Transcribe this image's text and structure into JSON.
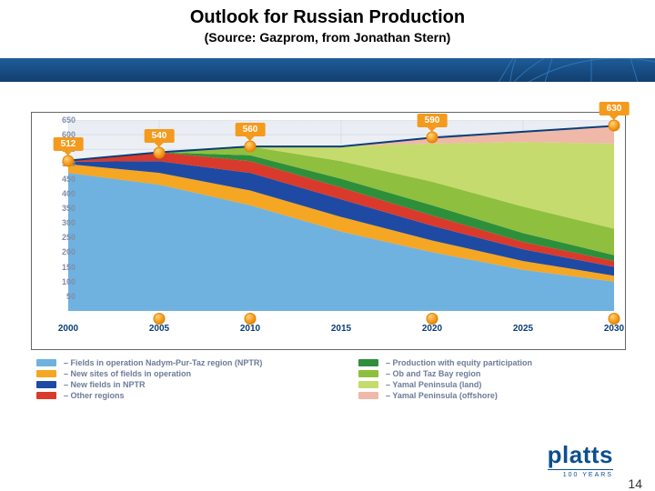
{
  "title": "Outlook for Russian Production",
  "subtitle": "(Source: Gazprom, from Jonathan Stern)",
  "page_number": "14",
  "logo": {
    "brand": "platts",
    "tagline": "100 YEARS"
  },
  "band": {
    "bg_top": "#1e5c99",
    "bg_bottom": "#123f6f",
    "grid_color": "#2f78b8"
  },
  "chart": {
    "type": "area",
    "background_color": "#f0f3f7",
    "plot_bg_top": "#e9edf3",
    "plot_bg_bottom": "#ffffff",
    "grid_color": "#d8dee9",
    "x": {
      "labels": [
        "2000",
        "2005",
        "2010",
        "2015",
        "2020",
        "2025",
        "2030"
      ],
      "label_color": "#0a3e7a",
      "label_fontsize": 10,
      "marker_years": [
        "2005",
        "2010",
        "2020",
        "2030"
      ]
    },
    "y": {
      "min": 0,
      "max": 650,
      "tick_step": 50,
      "ticks": [
        50,
        100,
        150,
        200,
        250,
        300,
        350,
        400,
        450,
        500,
        550,
        600,
        650
      ],
      "label_color": "#7f8ea9",
      "label_fontsize": 9
    },
    "series_order": [
      "nptr_operating",
      "new_sites_operating",
      "new_nptr",
      "other_regions",
      "equity_participation",
      "ob_taz",
      "yamal_land",
      "yamal_offshore"
    ],
    "series": {
      "nptr_operating": {
        "color": "#6fb2e0",
        "values": [
          470,
          430,
          360,
          270,
          200,
          140,
          100
        ]
      },
      "new_sites_operating": {
        "color": "#f5a623",
        "values": [
          30,
          40,
          50,
          50,
          40,
          30,
          20
        ]
      },
      "new_nptr": {
        "color": "#1f4aa3",
        "values": [
          8,
          40,
          60,
          60,
          50,
          40,
          30
        ]
      },
      "other_regions": {
        "color": "#d93a2b",
        "values": [
          4,
          30,
          40,
          40,
          35,
          25,
          20
        ]
      },
      "equity_participation": {
        "color": "#2e8f3b",
        "values": [
          0,
          0,
          20,
          30,
          35,
          30,
          20
        ]
      },
      "ob_taz": {
        "color": "#8fbf3f",
        "values": [
          0,
          0,
          30,
          60,
          80,
          90,
          90
        ]
      },
      "yamal_land": {
        "color": "#c6db6d",
        "values": [
          0,
          0,
          0,
          50,
          130,
          220,
          290
        ]
      },
      "yamal_offshore": {
        "color": "#f0b8a8",
        "values": [
          0,
          0,
          0,
          0,
          20,
          35,
          60
        ]
      }
    },
    "total_line": {
      "color": "#0a3e7a",
      "width": 2,
      "points": [
        {
          "year": "2000",
          "value": 512,
          "label": "512"
        },
        {
          "year": "2005",
          "value": 540,
          "label": "540"
        },
        {
          "year": "2010",
          "value": 560,
          "label": "560"
        },
        {
          "year": "2020",
          "value": 590,
          "label": "590"
        },
        {
          "year": "2030",
          "value": 630,
          "label": "630"
        }
      ],
      "callout_bg": "#f49a1d",
      "callout_fg": "#ffffff"
    }
  },
  "legend": {
    "text_color": "#6d7b99",
    "fontsize": 9,
    "left": [
      {
        "key": "nptr_operating",
        "color": "#6fb2e0",
        "label": "– Fields in operation Nadym-Pur-Taz region (NPTR)"
      },
      {
        "key": "new_sites_operating",
        "color": "#f5a623",
        "label": "– New sites of fields in operation"
      },
      {
        "key": "new_nptr",
        "color": "#1f4aa3",
        "label": "– New fields in NPTR"
      },
      {
        "key": "other_regions",
        "color": "#d93a2b",
        "label": "– Other regions"
      }
    ],
    "right": [
      {
        "key": "equity_participation",
        "color": "#2e8f3b",
        "label": "– Production with equity participation"
      },
      {
        "key": "ob_taz",
        "color": "#8fbf3f",
        "label": "– Ob and Taz Bay region"
      },
      {
        "key": "yamal_land",
        "color": "#c6db6d",
        "label": "– Yamal Peninsula (land)"
      },
      {
        "key": "yamal_offshore",
        "color": "#f0b8a8",
        "label": "– Yamal Peninsula (offshore)"
      }
    ]
  }
}
